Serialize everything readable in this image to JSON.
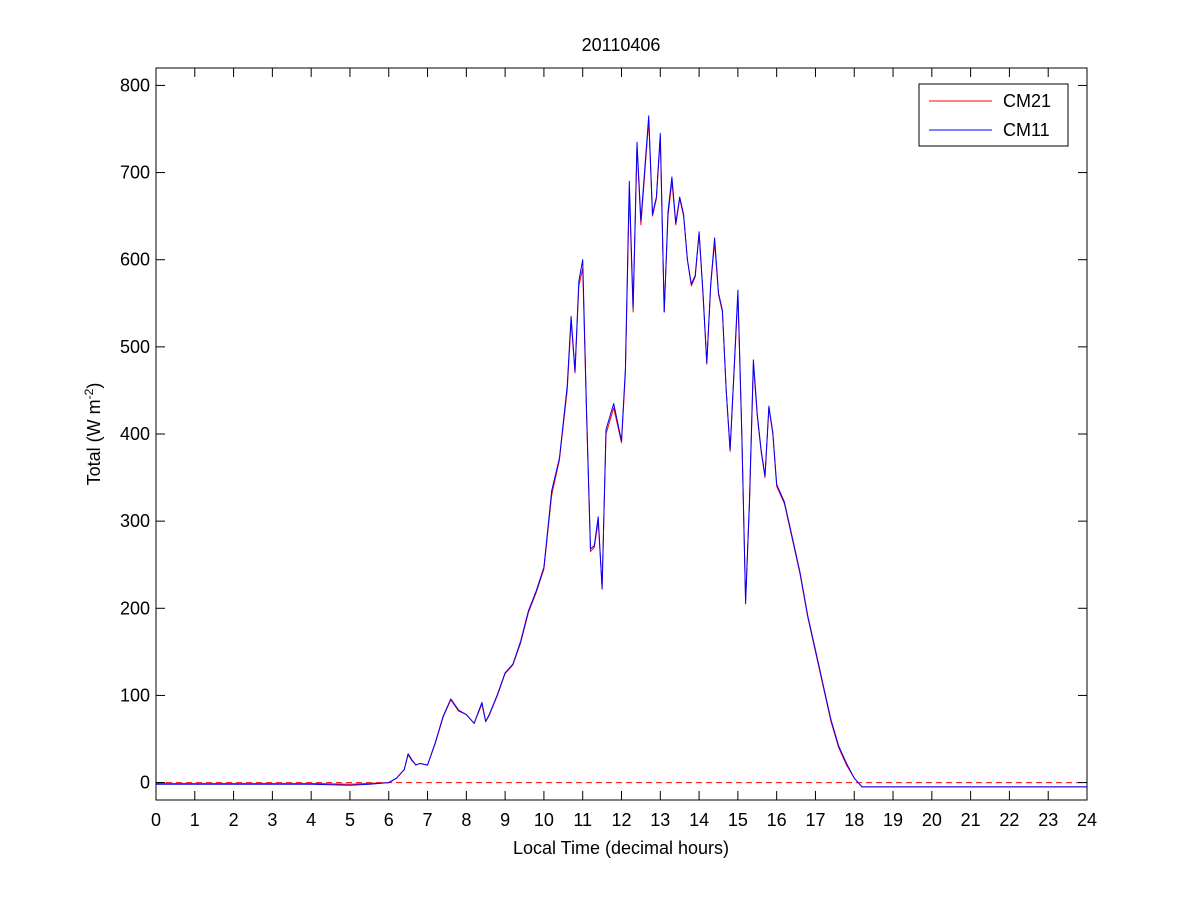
{
  "chart_data": {
    "type": "line",
    "title": "20110406",
    "xlabel": "Local Time (decimal hours)",
    "ylabel_main": "Total (W m",
    "ylabel_sup": "-2",
    "ylabel_close": ")",
    "xlim": [
      0,
      24
    ],
    "ylim": [
      -20,
      820
    ],
    "x_ticks": [
      0,
      1,
      2,
      3,
      4,
      5,
      6,
      7,
      8,
      9,
      10,
      11,
      12,
      13,
      14,
      15,
      16,
      17,
      18,
      19,
      20,
      21,
      22,
      23,
      24
    ],
    "y_ticks": [
      0,
      100,
      200,
      300,
      400,
      500,
      600,
      700,
      800
    ],
    "grid": false,
    "legend_position": "top-right",
    "zero_line": {
      "y": 0,
      "style": "dashed",
      "color": "#ff0000"
    },
    "series": [
      {
        "name": "CM21",
        "color": "#ff0000",
        "x": [
          0,
          1,
          2,
          3,
          4,
          5,
          5.5,
          6,
          6.2,
          6.4,
          6.5,
          6.6,
          6.7,
          6.8,
          7,
          7.2,
          7.4,
          7.6,
          7.8,
          8,
          8.2,
          8.4,
          8.5,
          8.6,
          8.8,
          9,
          9.2,
          9.4,
          9.6,
          9.8,
          10,
          10.2,
          10.4,
          10.6,
          10.7,
          10.8,
          10.9,
          11,
          11.1,
          11.2,
          11.3,
          11.4,
          11.5,
          11.6,
          11.8,
          12,
          12.1,
          12.2,
          12.3,
          12.4,
          12.5,
          12.6,
          12.7,
          12.8,
          12.9,
          13,
          13.1,
          13.2,
          13.3,
          13.4,
          13.5,
          13.6,
          13.7,
          13.8,
          13.9,
          14,
          14.1,
          14.2,
          14.3,
          14.4,
          14.5,
          14.6,
          14.7,
          14.8,
          14.9,
          15,
          15.1,
          15.2,
          15.3,
          15.4,
          15.5,
          15.6,
          15.7,
          15.8,
          15.9,
          16,
          16.2,
          16.4,
          16.6,
          16.8,
          17,
          17.2,
          17.4,
          17.6,
          17.8,
          18,
          18.2,
          18.4,
          18.6,
          18.8,
          19,
          20,
          21,
          22,
          23,
          24
        ],
        "y": [
          -1,
          -1,
          -1,
          -1,
          -1,
          -2,
          -1,
          0,
          5,
          15,
          32,
          25,
          20,
          22,
          20,
          45,
          75,
          95,
          82,
          78,
          68,
          90,
          70,
          78,
          100,
          125,
          135,
          160,
          195,
          218,
          245,
          330,
          370,
          450,
          530,
          470,
          570,
          590,
          420,
          265,
          270,
          300,
          225,
          400,
          430,
          390,
          470,
          680,
          540,
          730,
          640,
          700,
          760,
          650,
          670,
          740,
          540,
          650,
          690,
          640,
          670,
          650,
          600,
          570,
          580,
          630,
          560,
          480,
          570,
          620,
          560,
          540,
          450,
          380,
          470,
          560,
          400,
          210,
          320,
          480,
          420,
          380,
          350,
          430,
          400,
          340,
          320,
          280,
          240,
          190,
          150,
          110,
          70,
          40,
          20,
          5,
          -5,
          -5,
          -5,
          -5,
          -5,
          -5,
          -5,
          -5,
          -5,
          -5
        ]
      },
      {
        "name": "CM11",
        "color": "#0000ff",
        "x": [
          0,
          1,
          2,
          3,
          4,
          5,
          5.5,
          6,
          6.2,
          6.4,
          6.5,
          6.6,
          6.7,
          6.8,
          7,
          7.2,
          7.4,
          7.6,
          7.8,
          8,
          8.2,
          8.4,
          8.5,
          8.6,
          8.8,
          9,
          9.2,
          9.4,
          9.6,
          9.8,
          10,
          10.2,
          10.4,
          10.6,
          10.7,
          10.8,
          10.9,
          11,
          11.1,
          11.2,
          11.3,
          11.4,
          11.5,
          11.6,
          11.8,
          12,
          12.1,
          12.2,
          12.3,
          12.4,
          12.5,
          12.6,
          12.7,
          12.8,
          12.9,
          13,
          13.1,
          13.2,
          13.3,
          13.4,
          13.5,
          13.6,
          13.7,
          13.8,
          13.9,
          14,
          14.1,
          14.2,
          14.3,
          14.4,
          14.5,
          14.6,
          14.7,
          14.8,
          14.9,
          15,
          15.1,
          15.2,
          15.3,
          15.4,
          15.5,
          15.6,
          15.7,
          15.8,
          15.9,
          16,
          16.2,
          16.4,
          16.6,
          16.8,
          17,
          17.2,
          17.4,
          17.6,
          17.8,
          18,
          18.2,
          18.4,
          18.6,
          18.8,
          19,
          20,
          21,
          22,
          23,
          24
        ],
        "y": [
          -2,
          -2,
          -2,
          -2,
          -2,
          -3,
          -2,
          0,
          5,
          15,
          33,
          26,
          20,
          22,
          20,
          46,
          76,
          96,
          83,
          78,
          68,
          92,
          70,
          79,
          101,
          126,
          136,
          162,
          197,
          220,
          247,
          335,
          372,
          455,
          535,
          472,
          575,
          600,
          425,
          268,
          272,
          305,
          222,
          405,
          435,
          392,
          475,
          690,
          545,
          735,
          645,
          705,
          765,
          652,
          672,
          745,
          540,
          655,
          695,
          642,
          672,
          652,
          600,
          572,
          582,
          632,
          562,
          482,
          572,
          625,
          562,
          542,
          450,
          382,
          472,
          565,
          402,
          205,
          325,
          485,
          422,
          382,
          352,
          432,
          402,
          342,
          322,
          282,
          242,
          192,
          152,
          112,
          72,
          42,
          22,
          5,
          -5,
          -5,
          -5,
          -5,
          -5,
          -5,
          -5,
          -5,
          -5,
          -5
        ]
      }
    ]
  }
}
